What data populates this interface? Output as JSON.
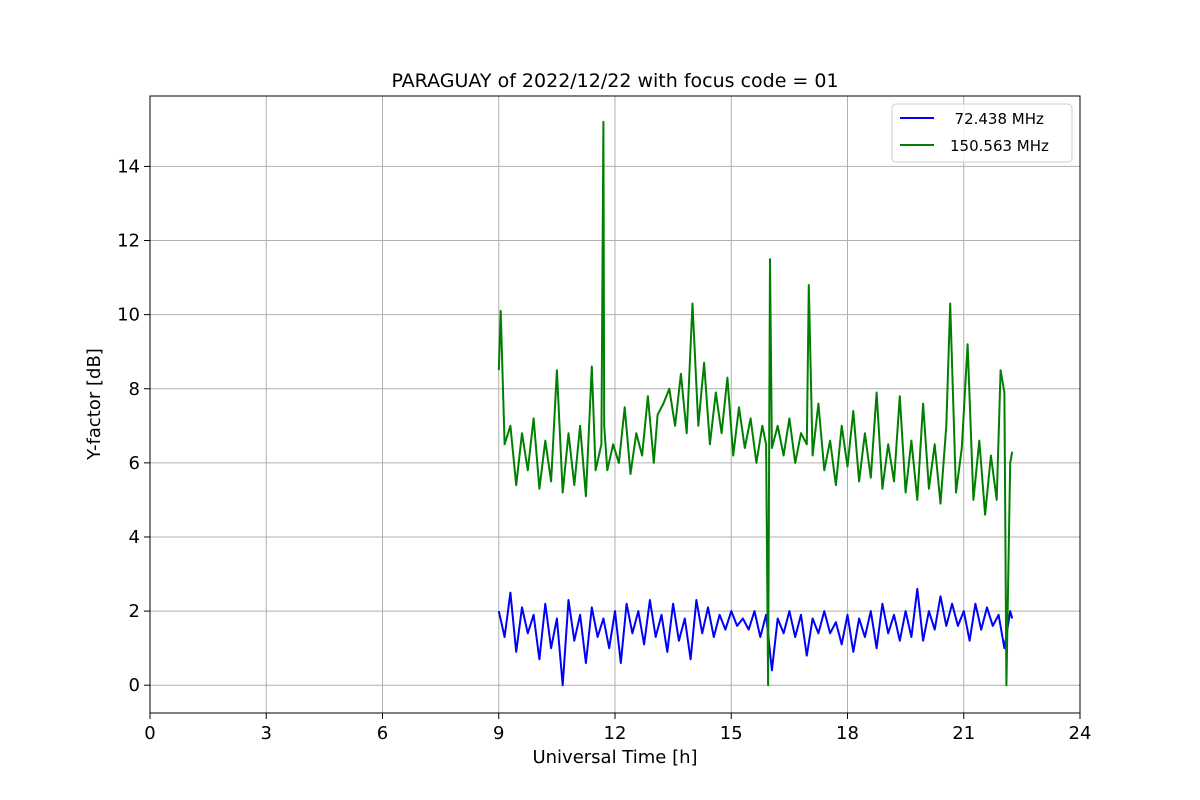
{
  "chart_data": {
    "type": "line",
    "title": "PARAGUAY of 2022/12/22 with focus code = 01",
    "xlabel": "Universal Time [h]",
    "ylabel": "Y-factor [dB]",
    "xlim": [
      0,
      24
    ],
    "ylim": [
      -0.75,
      15.9
    ],
    "xticks": [
      0,
      3,
      6,
      9,
      12,
      15,
      18,
      21,
      24
    ],
    "yticks": [
      0,
      2,
      4,
      6,
      8,
      10,
      12,
      14
    ],
    "grid": true,
    "legend_position": "top-right",
    "series": [
      {
        "name": "  72.438 MHz",
        "color": "#0000ff",
        "x": [
          9.0,
          9.15,
          9.3,
          9.45,
          9.6,
          9.75,
          9.9,
          10.05,
          10.2,
          10.35,
          10.5,
          10.65,
          10.8,
          10.95,
          11.1,
          11.25,
          11.4,
          11.55,
          11.7,
          11.85,
          12.0,
          12.15,
          12.3,
          12.45,
          12.6,
          12.75,
          12.9,
          13.05,
          13.2,
          13.35,
          13.5,
          13.65,
          13.8,
          13.95,
          14.1,
          14.25,
          14.4,
          14.55,
          14.7,
          14.85,
          15.0,
          15.15,
          15.3,
          15.45,
          15.6,
          15.75,
          15.9,
          16.05,
          16.2,
          16.35,
          16.5,
          16.65,
          16.8,
          16.95,
          17.1,
          17.25,
          17.4,
          17.55,
          17.7,
          17.85,
          18.0,
          18.15,
          18.3,
          18.45,
          18.6,
          18.75,
          18.9,
          19.05,
          19.2,
          19.35,
          19.5,
          19.65,
          19.8,
          19.95,
          20.1,
          20.25,
          20.4,
          20.55,
          20.7,
          20.85,
          21.0,
          21.15,
          21.3,
          21.45,
          21.6,
          21.75,
          21.9,
          22.05,
          22.2,
          22.25
        ],
        "y": [
          2.0,
          1.3,
          2.5,
          0.9,
          2.1,
          1.4,
          1.9,
          0.7,
          2.2,
          1.0,
          1.8,
          0.0,
          2.3,
          1.2,
          1.9,
          0.6,
          2.1,
          1.3,
          1.8,
          1.0,
          2.0,
          0.6,
          2.2,
          1.4,
          2.0,
          1.1,
          2.3,
          1.3,
          1.9,
          0.9,
          2.2,
          1.2,
          1.8,
          0.7,
          2.3,
          1.4,
          2.1,
          1.3,
          1.9,
          1.5,
          2.0,
          1.6,
          1.8,
          1.5,
          2.0,
          1.3,
          1.9,
          0.4,
          1.8,
          1.4,
          2.0,
          1.3,
          1.9,
          0.8,
          1.8,
          1.4,
          2.0,
          1.4,
          1.7,
          1.1,
          1.9,
          0.9,
          1.8,
          1.3,
          2.0,
          1.0,
          2.2,
          1.4,
          1.9,
          1.2,
          2.0,
          1.3,
          2.6,
          1.2,
          2.0,
          1.5,
          2.4,
          1.6,
          2.2,
          1.6,
          2.0,
          1.2,
          2.2,
          1.5,
          2.1,
          1.6,
          1.9,
          1.0,
          2.0,
          1.8
        ]
      },
      {
        "name": "150.563 MHz",
        "color": "#008000",
        "x": [
          9.0,
          9.05,
          9.15,
          9.3,
          9.45,
          9.6,
          9.75,
          9.9,
          10.05,
          10.2,
          10.35,
          10.5,
          10.65,
          10.8,
          10.95,
          11.1,
          11.25,
          11.4,
          11.5,
          11.65,
          11.7,
          11.72,
          11.8,
          11.95,
          12.1,
          12.25,
          12.4,
          12.55,
          12.7,
          12.85,
          13.0,
          13.1,
          13.25,
          13.4,
          13.55,
          13.7,
          13.85,
          14.0,
          14.15,
          14.3,
          14.45,
          14.6,
          14.75,
          14.9,
          15.05,
          15.2,
          15.35,
          15.5,
          15.65,
          15.8,
          15.9,
          15.95,
          16.0,
          16.05,
          16.2,
          16.35,
          16.5,
          16.65,
          16.8,
          16.95,
          17.0,
          17.1,
          17.25,
          17.4,
          17.55,
          17.7,
          17.85,
          18.0,
          18.15,
          18.3,
          18.45,
          18.6,
          18.75,
          18.9,
          19.05,
          19.2,
          19.35,
          19.5,
          19.65,
          19.8,
          19.95,
          20.1,
          20.25,
          20.4,
          20.55,
          20.65,
          20.8,
          20.95,
          21.1,
          21.25,
          21.4,
          21.55,
          21.7,
          21.85,
          21.95,
          22.05,
          22.1,
          22.2,
          22.25
        ],
        "y": [
          8.5,
          10.1,
          6.5,
          7.0,
          5.4,
          6.8,
          5.8,
          7.2,
          5.3,
          6.6,
          5.5,
          8.5,
          5.2,
          6.8,
          5.4,
          7.0,
          5.1,
          8.6,
          5.8,
          6.5,
          15.2,
          7.0,
          5.8,
          6.5,
          6.0,
          7.5,
          5.7,
          6.8,
          6.2,
          7.8,
          6.0,
          7.3,
          7.6,
          8.0,
          7.0,
          8.4,
          6.8,
          10.3,
          7.0,
          8.7,
          6.5,
          7.9,
          6.8,
          8.3,
          6.2,
          7.5,
          6.4,
          7.2,
          6.0,
          7.0,
          6.5,
          0.0,
          11.5,
          6.4,
          7.0,
          6.2,
          7.2,
          6.0,
          6.8,
          6.5,
          10.8,
          6.2,
          7.6,
          5.8,
          6.6,
          5.4,
          7.0,
          5.9,
          7.4,
          5.5,
          6.8,
          5.6,
          7.9,
          5.3,
          6.5,
          5.5,
          7.8,
          5.2,
          6.6,
          5.0,
          7.6,
          5.3,
          6.5,
          4.9,
          7.0,
          10.3,
          5.2,
          6.4,
          9.2,
          5.0,
          6.6,
          4.6,
          6.2,
          5.0,
          8.5,
          7.9,
          0.0,
          6.0,
          6.3
        ]
      }
    ]
  }
}
